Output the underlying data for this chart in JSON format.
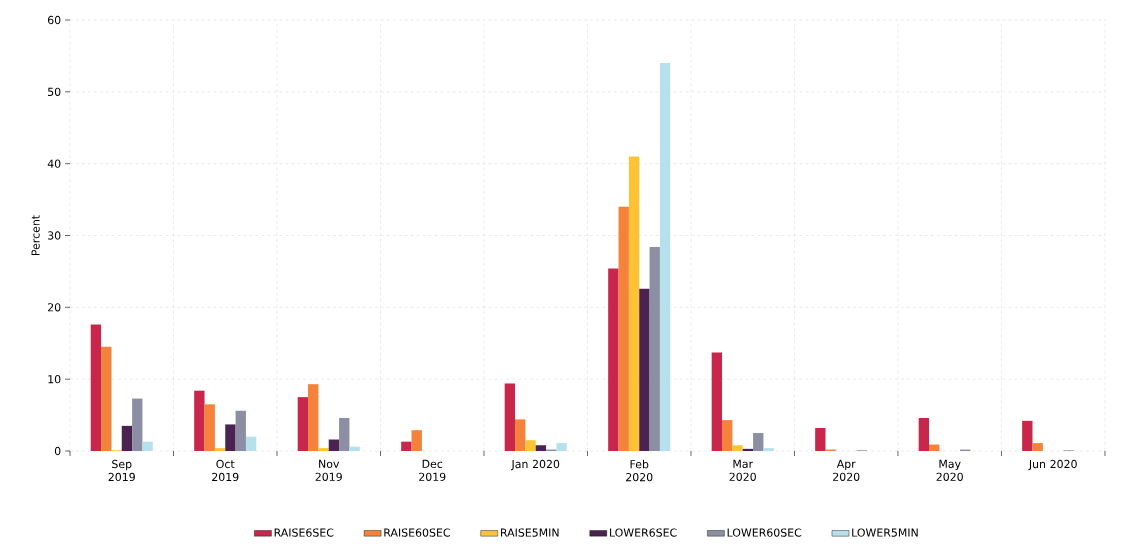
{
  "chart_data": {
    "type": "bar",
    "ylabel": "Percent",
    "categories": [
      "Sep 2019",
      "Oct 2019",
      "Nov 2019",
      "Dec 2019",
      "Jan 2020",
      "Feb 2020",
      "Mar 2020",
      "Apr 2020",
      "May 2020",
      "Jun 2020"
    ],
    "series": [
      {
        "name": "RAISE6SEC",
        "color": "#c8264a",
        "values": [
          17.6,
          8.4,
          7.5,
          1.3,
          9.4,
          25.4,
          13.7,
          3.2,
          4.6,
          4.2
        ]
      },
      {
        "name": "RAISE60SEC",
        "color": "#f4823a",
        "values": [
          14.5,
          6.5,
          9.3,
          2.9,
          4.4,
          34.0,
          4.3,
          0.2,
          0.9,
          1.1
        ]
      },
      {
        "name": "RAISE5MIN",
        "color": "#fec334",
        "values": [
          0.1,
          0.4,
          0.4,
          0,
          1.5,
          41.0,
          0.8,
          0,
          0,
          0
        ]
      },
      {
        "name": "LOWER6SEC",
        "color": "#4a2350",
        "values": [
          3.5,
          3.7,
          1.6,
          0,
          0.8,
          22.6,
          0.3,
          0,
          0,
          0
        ]
      },
      {
        "name": "LOWER60SEC",
        "color": "#8c8ea4",
        "values": [
          7.3,
          5.6,
          4.6,
          0,
          0.2,
          28.4,
          2.5,
          0.1,
          0.2,
          0.1
        ]
      },
      {
        "name": "LOWER5MIN",
        "color": "#b6e0ec",
        "values": [
          1.3,
          2.0,
          0.6,
          0,
          1.1,
          54.0,
          0.4,
          0,
          0,
          0
        ]
      }
    ],
    "ylim": [
      0,
      60
    ],
    "yticks": [
      0,
      10,
      20,
      30,
      40,
      50,
      60
    ],
    "grid": true,
    "legend": "bottom"
  }
}
